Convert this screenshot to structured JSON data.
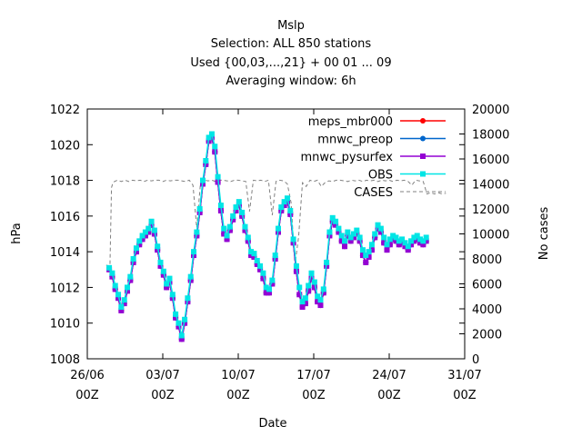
{
  "chart_data": {
    "type": "line",
    "title": "Mslp",
    "subtitle_lines": [
      "Selection: ALL    850 stations",
      "Used {00,03,...,21} + 00 01 ... 09",
      "Averaging window:  6h"
    ],
    "xlabel": "Date",
    "ylabel": "hPa",
    "y2label": "No cases",
    "xlim": [
      0,
      5
    ],
    "ylim": [
      1008,
      1022
    ],
    "y2lim": [
      0,
      20000
    ],
    "x_ticks": [
      {
        "x": 0,
        "label": "26/06",
        "sub": "00Z"
      },
      {
        "x": 1,
        "label": "03/07",
        "sub": "00Z"
      },
      {
        "x": 2,
        "label": "10/07",
        "sub": "00Z"
      },
      {
        "x": 3,
        "label": "17/07",
        "sub": "00Z"
      },
      {
        "x": 4,
        "label": "24/07",
        "sub": "00Z"
      },
      {
        "x": 5,
        "label": "31/07",
        "sub": "00Z"
      }
    ],
    "y_ticks": [
      "1008",
      "1010",
      "1012",
      "1014",
      "1016",
      "1018",
      "1020",
      "1022"
    ],
    "y2_ticks": [
      "0",
      "2000",
      "4000",
      "6000",
      "8000",
      "10000",
      "12000",
      "14000",
      "16000",
      "18000",
      "20000"
    ],
    "grid": false,
    "legend_position": "top-right",
    "series": [
      {
        "name": "meps_mbr000",
        "color": "#ff0000",
        "marker": "circle"
      },
      {
        "name": "mnwc_preop",
        "color": "#0066cc",
        "marker": "circle"
      },
      {
        "name": "mnwc_pysurfex",
        "color": "#9400d3",
        "marker": "square"
      },
      {
        "name": "OBS",
        "color": "#00e5e5",
        "marker": "square"
      },
      {
        "name": "CASES",
        "color": "#808080",
        "dashed": true
      }
    ],
    "pressure_x": [
      0.29,
      0.33,
      0.37,
      0.41,
      0.45,
      0.49,
      0.53,
      0.57,
      0.61,
      0.65,
      0.69,
      0.73,
      0.77,
      0.81,
      0.85,
      0.89,
      0.93,
      0.97,
      1.01,
      1.05,
      1.09,
      1.13,
      1.17,
      1.21,
      1.25,
      1.29,
      1.33,
      1.37,
      1.41,
      1.45,
      1.49,
      1.53,
      1.57,
      1.61,
      1.65,
      1.69,
      1.73,
      1.77,
      1.81,
      1.85,
      1.89,
      1.93,
      1.97,
      2.01,
      2.05,
      2.09,
      2.13,
      2.17,
      2.21,
      2.25,
      2.29,
      2.33,
      2.37,
      2.41,
      2.45,
      2.49,
      2.53,
      2.57,
      2.61,
      2.65,
      2.69,
      2.73,
      2.77,
      2.81,
      2.85,
      2.89,
      2.93,
      2.97,
      3.01,
      3.05,
      3.09,
      3.13,
      3.17,
      3.21,
      3.25,
      3.29,
      3.33,
      3.37,
      3.41,
      3.45,
      3.49,
      3.53,
      3.57,
      3.61,
      3.65,
      3.69,
      3.73,
      3.77,
      3.81,
      3.85,
      3.89,
      3.93,
      3.97,
      4.01,
      4.05,
      4.09,
      4.13,
      4.17,
      4.21,
      4.25,
      4.29,
      4.33,
      4.37,
      4.41,
      4.45,
      4.49
    ],
    "pressure_obs": [
      1013.1,
      1012.8,
      1012.1,
      1011.6,
      1010.9,
      1011.3,
      1012.0,
      1012.6,
      1013.6,
      1014.2,
      1014.6,
      1014.9,
      1015.1,
      1015.3,
      1015.7,
      1015.2,
      1014.3,
      1013.4,
      1012.9,
      1012.2,
      1012.5,
      1011.6,
      1010.5,
      1010.0,
      1009.3,
      1010.2,
      1011.4,
      1012.6,
      1014.0,
      1015.1,
      1016.4,
      1018.0,
      1019.1,
      1020.4,
      1020.6,
      1019.9,
      1018.2,
      1016.6,
      1015.3,
      1014.9,
      1015.4,
      1016.0,
      1016.5,
      1016.8,
      1016.2,
      1015.4,
      1014.8,
      1014.0,
      1013.9,
      1013.5,
      1013.2,
      1012.8,
      1012.0,
      1011.9,
      1012.4,
      1013.8,
      1015.3,
      1016.5,
      1016.8,
      1017.0,
      1016.3,
      1014.7,
      1013.2,
      1012.0,
      1011.2,
      1011.4,
      1012.1,
      1012.8,
      1012.3,
      1011.5,
      1011.3,
      1011.9,
      1013.4,
      1015.1,
      1015.9,
      1015.7,
      1015.3,
      1014.9,
      1014.6,
      1015.1,
      1014.8,
      1015.0,
      1015.2,
      1014.8,
      1014.1,
      1013.8,
      1014.0,
      1014.4,
      1015.0,
      1015.5,
      1015.3,
      1014.8,
      1014.4,
      1014.7,
      1014.9,
      1014.8,
      1014.6,
      1014.7,
      1014.5,
      1014.3,
      1014.6,
      1014.8,
      1014.9,
      1014.7,
      1014.6,
      1014.8
    ],
    "pressure_model": [
      1013.0,
      1012.6,
      1011.9,
      1011.4,
      1010.7,
      1011.1,
      1011.8,
      1012.4,
      1013.4,
      1014.0,
      1014.4,
      1014.7,
      1014.9,
      1015.1,
      1015.5,
      1015.0,
      1014.1,
      1013.2,
      1012.7,
      1012.0,
      1012.3,
      1011.4,
      1010.3,
      1009.8,
      1009.1,
      1010.0,
      1011.2,
      1012.4,
      1013.8,
      1014.9,
      1016.2,
      1017.8,
      1018.9,
      1020.2,
      1020.4,
      1019.6,
      1017.9,
      1016.3,
      1015.0,
      1014.7,
      1015.2,
      1015.8,
      1016.3,
      1016.6,
      1016.0,
      1015.2,
      1014.6,
      1013.8,
      1013.7,
      1013.3,
      1013.0,
      1012.5,
      1011.7,
      1011.7,
      1012.2,
      1013.6,
      1015.1,
      1016.3,
      1016.6,
      1016.8,
      1016.1,
      1014.5,
      1012.9,
      1011.6,
      1010.9,
      1011.1,
      1011.8,
      1012.5,
      1012.0,
      1011.2,
      1011.0,
      1011.7,
      1013.2,
      1014.9,
      1015.7,
      1015.5,
      1015.1,
      1014.6,
      1014.3,
      1014.9,
      1014.6,
      1014.8,
      1015.0,
      1014.6,
      1013.8,
      1013.4,
      1013.7,
      1014.1,
      1014.8,
      1015.3,
      1015.1,
      1014.5,
      1014.1,
      1014.4,
      1014.7,
      1014.6,
      1014.4,
      1014.5,
      1014.3,
      1014.1,
      1014.4,
      1014.6,
      1014.7,
      1014.5,
      1014.4,
      1014.6
    ],
    "cases_x": [
      0.25,
      0.3,
      0.32,
      0.34,
      0.36,
      0.4,
      0.45,
      0.5,
      0.55,
      0.6,
      0.65,
      0.7,
      0.75,
      0.8,
      0.85,
      0.9,
      0.95,
      1.0,
      1.05,
      1.1,
      1.15,
      1.2,
      1.25,
      1.3,
      1.35,
      1.4,
      1.45,
      1.5,
      1.55,
      1.6,
      1.65,
      1.7,
      1.75,
      1.8,
      1.85,
      1.9,
      1.95,
      2.0,
      2.05,
      2.1,
      2.15,
      2.2,
      2.25,
      2.3,
      2.35,
      2.4,
      2.45,
      2.5,
      2.55,
      2.6,
      2.65,
      2.7,
      2.75,
      2.8,
      2.85,
      2.9,
      2.95,
      3.0,
      3.05,
      3.1,
      3.15,
      3.2,
      3.25,
      3.3,
      3.35,
      3.4,
      3.45,
      3.5,
      3.55,
      3.6,
      3.65,
      3.7,
      3.75,
      3.8,
      3.85,
      3.9,
      3.95,
      4.0,
      4.05,
      4.1,
      4.15,
      4.2,
      4.25,
      4.3,
      4.35,
      4.4,
      4.45,
      4.5,
      4.55,
      4.6,
      4.65,
      4.7,
      4.75
    ],
    "cases_y": [
      7500,
      7400,
      13700,
      14100,
      14200,
      14300,
      14200,
      14300,
      14200,
      14300,
      14250,
      14300,
      14200,
      14300,
      14250,
      14300,
      14300,
      14200,
      14300,
      14250,
      14300,
      14300,
      14250,
      14200,
      14300,
      13900,
      10500,
      14100,
      14300,
      14250,
      14300,
      14200,
      14300,
      14300,
      14250,
      14200,
      14300,
      14300,
      14250,
      14200,
      11800,
      14300,
      14250,
      14300,
      14200,
      14300,
      11500,
      14200,
      14300,
      14250,
      14000,
      12500,
      7500,
      9800,
      14100,
      13800,
      14300,
      14200,
      14300,
      13800,
      14100,
      14250,
      14200,
      14300,
      14300,
      14250,
      14200,
      14300,
      14250,
      14300,
      14200,
      14300,
      14250,
      14300,
      14200,
      14300,
      14250,
      14300,
      14200,
      14300,
      14250,
      14300,
      14200,
      13900,
      14300,
      14250,
      14200,
      13200,
      13300,
      13200,
      13300,
      13200,
      13250
    ]
  }
}
